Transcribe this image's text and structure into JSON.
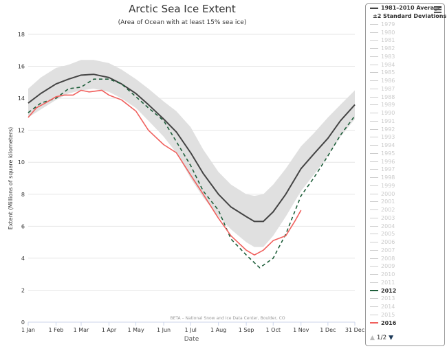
{
  "chart_data": {
    "type": "line",
    "title": "Arctic Sea Ice Extent",
    "subtitle": "(Area of Ocean with at least 15% sea ice)",
    "xlabel": "Date",
    "ylabel": "Extent (Millions of square kilometers)",
    "credit": "BETA – National Snow and Ice Data Center, Boulder, CO",
    "ylim": [
      0,
      18
    ],
    "yticks": [
      "0",
      "2",
      "4",
      "6",
      "8",
      "10",
      "12",
      "14",
      "16",
      "18"
    ],
    "xticks": [
      {
        "label": "1 Jan",
        "date": "01-01"
      },
      {
        "label": "1 Feb",
        "date": "02-01"
      },
      {
        "label": "1 Mar",
        "date": "03-01"
      },
      {
        "label": "1 Apr",
        "date": "04-01"
      },
      {
        "label": "1 May",
        "date": "05-01"
      },
      {
        "label": "1 Jun",
        "date": "06-01"
      },
      {
        "label": "1 Jul",
        "date": "07-01"
      },
      {
        "label": "1 Aug",
        "date": "08-01"
      },
      {
        "label": "1 Sep",
        "date": "09-01"
      },
      {
        "label": "1 Oct",
        "date": "10-01"
      },
      {
        "label": "1 Nov",
        "date": "11-01"
      },
      {
        "label": "1 Dec",
        "date": "12-01"
      },
      {
        "label": "31 Dec",
        "date": "12-31"
      }
    ],
    "grid": true,
    "band": {
      "name": "±2 Standard Deviations",
      "color": "#e0e0e0",
      "x": [
        "01-01",
        "01-15",
        "02-01",
        "02-15",
        "03-01",
        "03-15",
        "04-01",
        "04-15",
        "05-01",
        "05-15",
        "06-01",
        "06-15",
        "07-01",
        "07-15",
        "08-01",
        "08-15",
        "09-01",
        "09-10",
        "09-20",
        "10-01",
        "10-15",
        "11-01",
        "11-15",
        "12-01",
        "12-15",
        "12-31"
      ],
      "upper": [
        14.6,
        15.3,
        15.9,
        16.1,
        16.4,
        16.4,
        16.2,
        15.8,
        15.2,
        14.6,
        13.8,
        13.2,
        12.2,
        10.8,
        9.4,
        8.6,
        8.0,
        7.9,
        8.0,
        8.6,
        9.6,
        11.0,
        11.8,
        12.8,
        13.6,
        14.5
      ],
      "lower": [
        12.8,
        13.3,
        13.9,
        14.3,
        14.5,
        14.6,
        14.4,
        14.0,
        13.4,
        12.6,
        11.6,
        10.6,
        9.0,
        7.8,
        6.6,
        5.8,
        5.0,
        4.7,
        4.7,
        5.4,
        6.6,
        8.2,
        9.2,
        10.4,
        11.6,
        12.7
      ]
    },
    "series": [
      {
        "name": "1981–2010 Average",
        "color": "#444444",
        "dash": false,
        "x": [
          "01-01",
          "01-15",
          "02-01",
          "02-15",
          "03-01",
          "03-15",
          "04-01",
          "04-15",
          "05-01",
          "05-15",
          "06-01",
          "06-15",
          "07-01",
          "07-15",
          "08-01",
          "08-15",
          "09-01",
          "09-10",
          "09-20",
          "10-01",
          "10-15",
          "11-01",
          "11-15",
          "12-01",
          "12-15",
          "12-31"
        ],
        "y": [
          13.7,
          14.3,
          14.9,
          15.2,
          15.45,
          15.5,
          15.3,
          14.9,
          14.3,
          13.6,
          12.7,
          11.9,
          10.6,
          9.3,
          8.0,
          7.2,
          6.6,
          6.3,
          6.3,
          6.9,
          8.0,
          9.6,
          10.5,
          11.5,
          12.6,
          13.6
        ]
      },
      {
        "name": "2012",
        "color": "#1e5e3a",
        "dash": true,
        "x": [
          "01-01",
          "01-15",
          "02-01",
          "02-15",
          "03-01",
          "03-15",
          "04-01",
          "04-15",
          "05-01",
          "05-15",
          "06-01",
          "06-15",
          "07-01",
          "07-15",
          "08-01",
          "08-15",
          "09-01",
          "09-16",
          "10-01",
          "10-15",
          "11-01",
          "11-15",
          "12-01",
          "12-15",
          "12-31"
        ],
        "y": [
          13.1,
          13.7,
          14.0,
          14.6,
          14.7,
          15.2,
          15.2,
          14.9,
          14.1,
          13.4,
          12.6,
          11.3,
          9.8,
          8.2,
          7.0,
          5.2,
          4.2,
          3.4,
          4.0,
          5.5,
          7.9,
          9.0,
          10.4,
          11.7,
          12.9
        ]
      },
      {
        "name": "2016",
        "color": "#f0605d",
        "dash": false,
        "x": [
          "01-01",
          "01-10",
          "01-20",
          "02-01",
          "02-10",
          "02-20",
          "03-01",
          "03-10",
          "03-24",
          "04-01",
          "04-15",
          "05-01",
          "05-15",
          "06-01",
          "06-15",
          "07-01",
          "07-15",
          "08-01",
          "08-15",
          "09-01",
          "09-10",
          "09-20",
          "10-01",
          "10-15",
          "10-25",
          "11-01"
        ],
        "y": [
          12.8,
          13.4,
          13.7,
          14.1,
          14.2,
          14.2,
          14.5,
          14.4,
          14.5,
          14.2,
          13.9,
          13.2,
          12.0,
          11.1,
          10.6,
          9.2,
          8.0,
          6.5,
          5.4,
          4.5,
          4.2,
          4.5,
          5.1,
          5.4,
          6.3,
          7.0
        ]
      }
    ]
  },
  "legend": {
    "items": [
      "1979",
      "1980",
      "1981",
      "1982",
      "1983",
      "1984",
      "1985",
      "1986",
      "1987",
      "1988",
      "1989",
      "1990",
      "1991",
      "1992",
      "1993",
      "1994",
      "1995",
      "1996",
      "1997",
      "1998",
      "1999",
      "2000",
      "2001",
      "2002",
      "2003",
      "2004",
      "2005",
      "2006",
      "2007",
      "2008",
      "2009",
      "2010",
      "2011",
      "2012",
      "2013",
      "2014",
      "2015",
      "2016"
    ],
    "active": {
      "2012": "#1e5e3a",
      "2016": "#f0605d"
    },
    "page": "1/2"
  }
}
